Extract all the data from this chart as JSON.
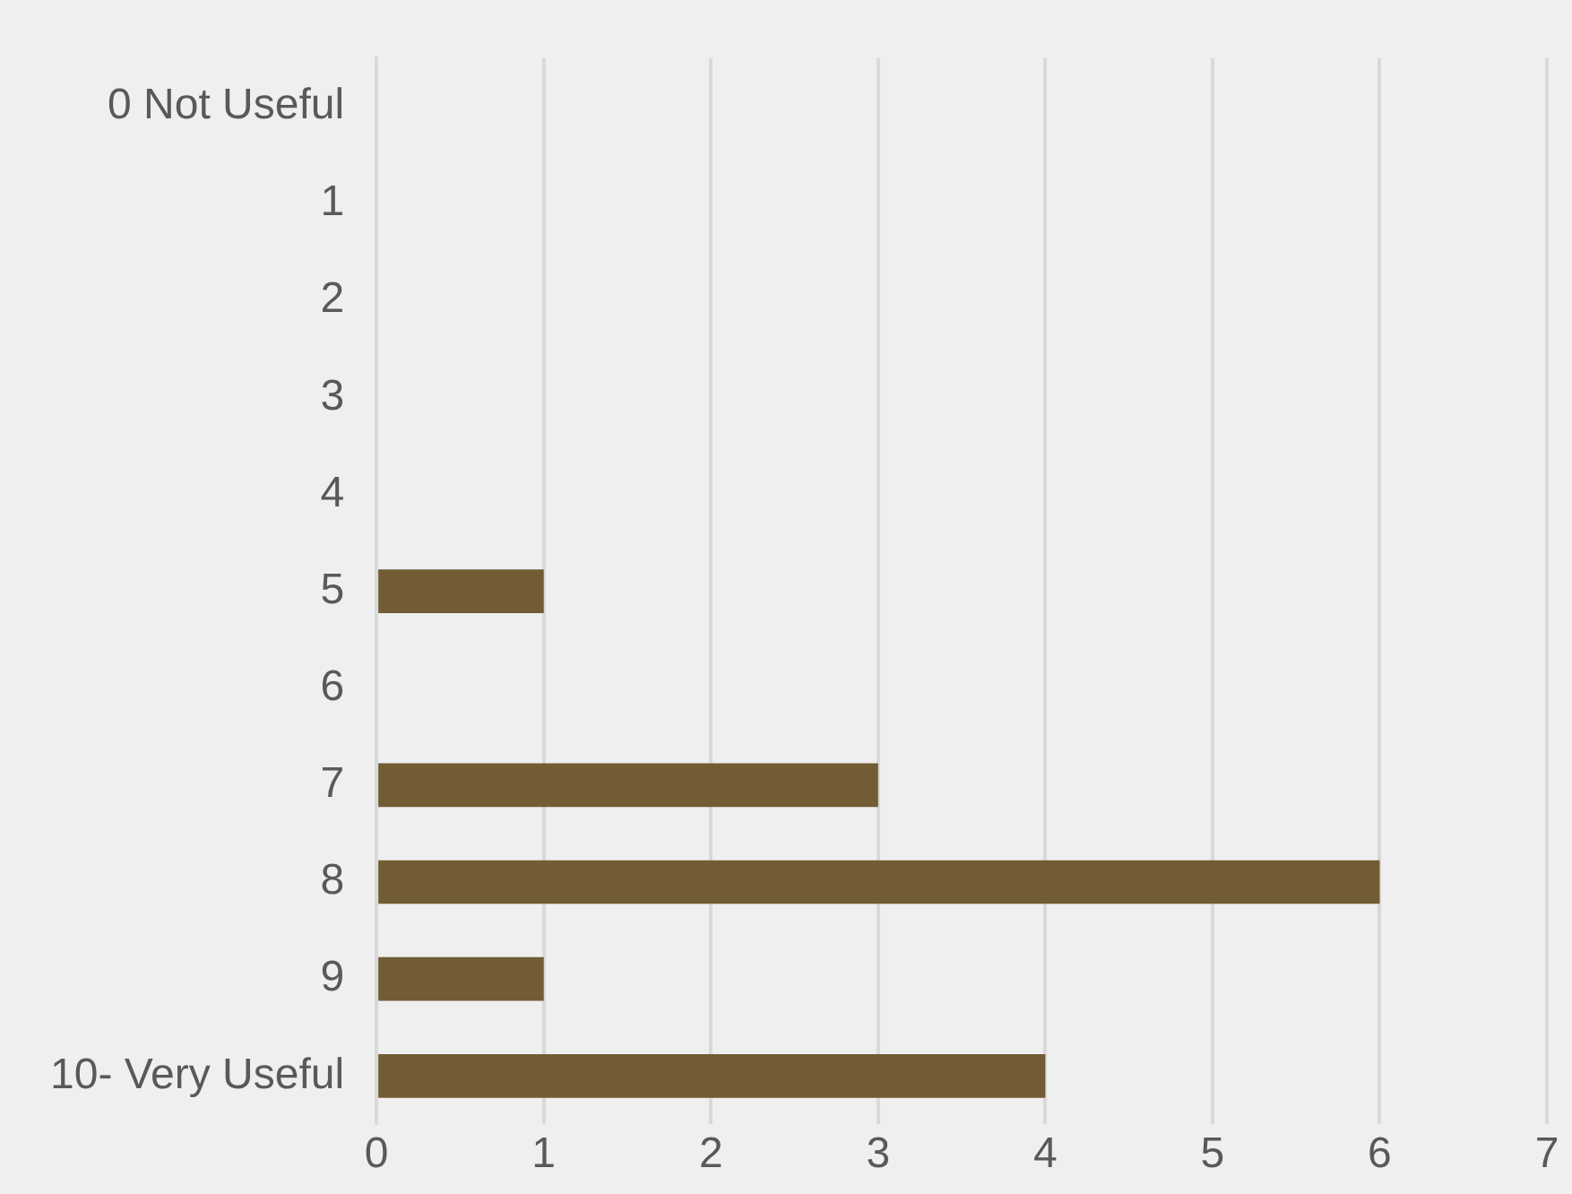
{
  "chart_data": {
    "type": "bar",
    "orientation": "horizontal",
    "categories": [
      "0 Not Useful",
      "1",
      "2",
      "3",
      "4",
      "5",
      "6",
      "7",
      "8",
      "9",
      "10- Very Useful"
    ],
    "values": [
      0,
      0,
      0,
      0,
      0,
      1,
      0,
      3,
      6,
      1,
      4
    ],
    "color": "#715c33",
    "xlim": [
      0,
      7
    ],
    "xticks": [
      0,
      1,
      2,
      3,
      4,
      5,
      6,
      7
    ],
    "grid": "x",
    "legend": false
  }
}
